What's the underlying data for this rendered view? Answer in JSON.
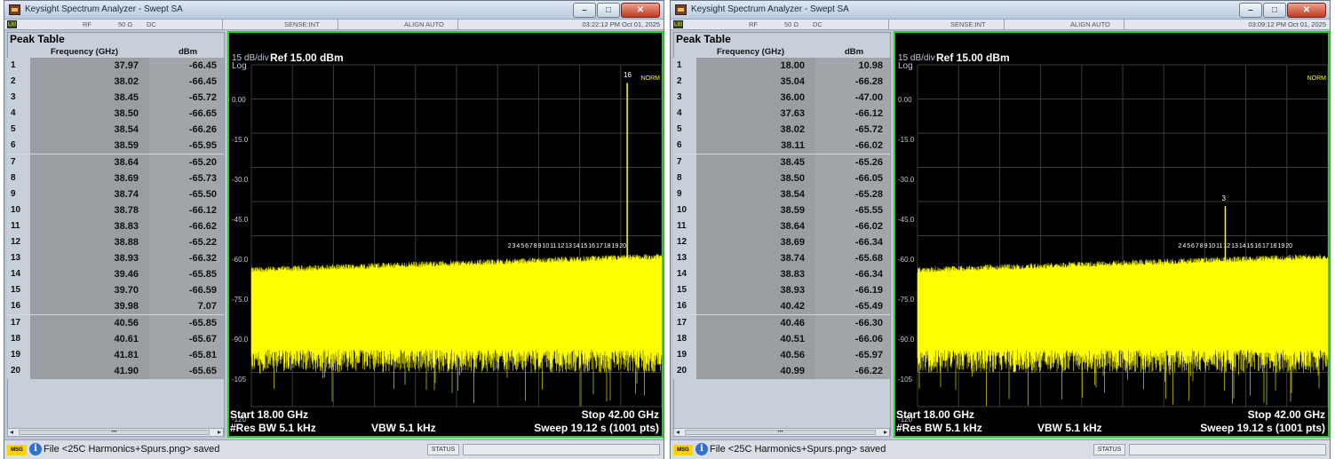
{
  "windows": [
    {
      "title": "Keysight Spectrum Analyzer - Swept SA",
      "status": {
        "rf": "RF",
        "imp": "50 Ω",
        "coupling": "DC",
        "sense": "SENSE:INT",
        "align": "ALIGN AUTO",
        "time": "03:22:12 PM Oct 01, 2025"
      },
      "peak_table": {
        "title": "Peak Table",
        "col_freq": "Frequency (GHz)",
        "col_amp": "dBm",
        "rows": [
          {
            "n": "1",
            "f": "37.97",
            "a": "-66.45"
          },
          {
            "n": "2",
            "f": "38.02",
            "a": "-66.45"
          },
          {
            "n": "3",
            "f": "38.45",
            "a": "-65.72"
          },
          {
            "n": "4",
            "f": "38.50",
            "a": "-66.65"
          },
          {
            "n": "5",
            "f": "38.54",
            "a": "-66.26"
          },
          {
            "n": "6",
            "f": "38.59",
            "a": "-65.95"
          },
          {
            "n": "7",
            "f": "38.64",
            "a": "-65.20"
          },
          {
            "n": "8",
            "f": "38.69",
            "a": "-65.73"
          },
          {
            "n": "9",
            "f": "38.74",
            "a": "-65.50"
          },
          {
            "n": "10",
            "f": "38.78",
            "a": "-66.12"
          },
          {
            "n": "11",
            "f": "38.83",
            "a": "-66.62"
          },
          {
            "n": "12",
            "f": "38.88",
            "a": "-65.22"
          },
          {
            "n": "13",
            "f": "38.93",
            "a": "-66.32"
          },
          {
            "n": "14",
            "f": "39.46",
            "a": "-65.85"
          },
          {
            "n": "15",
            "f": "39.70",
            "a": "-66.59"
          },
          {
            "n": "16",
            "f": "39.98",
            "a": "7.07"
          },
          {
            "n": "17",
            "f": "40.56",
            "a": "-65.85"
          },
          {
            "n": "18",
            "f": "40.61",
            "a": "-65.67"
          },
          {
            "n": "19",
            "f": "41.81",
            "a": "-65.81"
          },
          {
            "n": "20",
            "f": "41.90",
            "a": "-65.65"
          }
        ]
      },
      "graph": {
        "scale": "15 dB/div",
        "log": "Log",
        "ref": "Ref 15.00 dBm",
        "ylabels": [
          "0.00",
          "-15.0",
          "-30.0",
          "-45.0",
          "-60.0",
          "-75.0",
          "-90.0",
          "-105",
          "-120"
        ],
        "start": "Start 18.00 GHz",
        "stop": "Stop 42.00 GHz",
        "res_bw": "#Res BW 5.1 kHz",
        "vbw": "VBW 5.1 kHz",
        "sweep": "Sweep  19.12 s (1001 pts)",
        "norm": "NORM",
        "markers": "2 3 4 5 6 7 8 9 10 11 12 13 14 15 16 17 18 19 20",
        "spike": {
          "marker": "16",
          "freq_ghz": 39.98,
          "dbm": 7.07
        }
      },
      "msg": {
        "tag": "MSG",
        "text": "File <25C Harmonics+Spurs.png> saved",
        "status": "STATUS"
      }
    },
    {
      "title": "Keysight Spectrum Analyzer - Swept SA",
      "status": {
        "rf": "RF",
        "imp": "50 Ω",
        "coupling": "DC",
        "sense": "SENSE:INT",
        "align": "ALIGN AUTO",
        "time": "03:09:12 PM Oct 01, 2025"
      },
      "peak_table": {
        "title": "Peak Table",
        "col_freq": "Frequency (GHz)",
        "col_amp": "dBm",
        "rows": [
          {
            "n": "1",
            "f": "18.00",
            "a": "10.98"
          },
          {
            "n": "2",
            "f": "35.04",
            "a": "-66.28"
          },
          {
            "n": "3",
            "f": "36.00",
            "a": "-47.00"
          },
          {
            "n": "4",
            "f": "37.63",
            "a": "-66.12"
          },
          {
            "n": "5",
            "f": "38.02",
            "a": "-65.72"
          },
          {
            "n": "6",
            "f": "38.11",
            "a": "-66.02"
          },
          {
            "n": "7",
            "f": "38.45",
            "a": "-65.26"
          },
          {
            "n": "8",
            "f": "38.50",
            "a": "-66.05"
          },
          {
            "n": "9",
            "f": "38.54",
            "a": "-65.28"
          },
          {
            "n": "10",
            "f": "38.59",
            "a": "-65.55"
          },
          {
            "n": "11",
            "f": "38.64",
            "a": "-66.02"
          },
          {
            "n": "12",
            "f": "38.69",
            "a": "-66.34"
          },
          {
            "n": "13",
            "f": "38.74",
            "a": "-65.68"
          },
          {
            "n": "14",
            "f": "38.83",
            "a": "-66.34"
          },
          {
            "n": "15",
            "f": "38.93",
            "a": "-66.19"
          },
          {
            "n": "16",
            "f": "40.42",
            "a": "-65.49"
          },
          {
            "n": "17",
            "f": "40.46",
            "a": "-66.30"
          },
          {
            "n": "18",
            "f": "40.51",
            "a": "-66.06"
          },
          {
            "n": "19",
            "f": "40.56",
            "a": "-65.97"
          },
          {
            "n": "20",
            "f": "40.99",
            "a": "-66.22"
          }
        ]
      },
      "graph": {
        "scale": "15 dB/div",
        "log": "Log",
        "ref": "Ref 15.00 dBm",
        "ylabels": [
          "0.00",
          "-15.0",
          "-30.0",
          "-45.0",
          "-60.0",
          "-75.0",
          "-90.0",
          "-105",
          "-120"
        ],
        "start": "Start 18.00 GHz",
        "stop": "Stop 42.00 GHz",
        "res_bw": "#Res BW 5.1 kHz",
        "vbw": "VBW 5.1 kHz",
        "sweep": "Sweep  19.12 s (1001 pts)",
        "norm": "NORM",
        "markers": "2 4 5 6 7 8 9 10 11 12 13 14 15 16 17 18 19 20",
        "spike": {
          "marker": "3",
          "freq_ghz": 36.0,
          "dbm": -47.0
        }
      },
      "msg": {
        "tag": "MSG",
        "text": "File <25C Harmonics+Spurs.png> saved",
        "status": "STATUS"
      }
    }
  ],
  "colors": {
    "trace": "#ffff00",
    "graticule": "#3c3c3c",
    "frame": "#1fd21f",
    "background": "#000000"
  }
}
